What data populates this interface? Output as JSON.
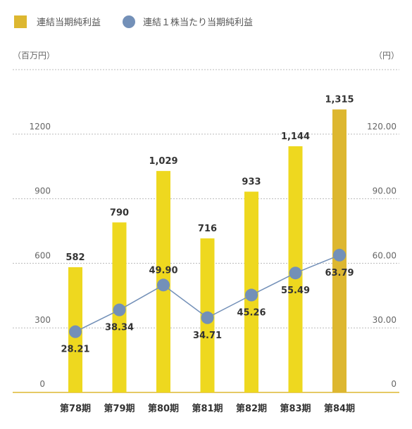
{
  "chart_data": {
    "type": "bar+line",
    "categories": [
      "第78期",
      "第79期",
      "第80期",
      "第81期",
      "第82期",
      "第83期",
      "第84期"
    ],
    "series": [
      {
        "name": "連結当期純利益",
        "type": "bar",
        "axis": "left",
        "values": [
          582,
          790,
          1029,
          716,
          933,
          1144,
          1315
        ],
        "labels": [
          "582",
          "790",
          "1,029",
          "716",
          "933",
          "1,144",
          "1,315"
        ],
        "color": "#EED81F",
        "highlight_color": "#DDB730",
        "highlight_index": 6
      },
      {
        "name": "連結１株当たり当期純利益",
        "type": "line",
        "axis": "right",
        "values": [
          28.21,
          38.34,
          49.9,
          34.71,
          45.26,
          55.49,
          63.79
        ],
        "labels": [
          "28.21",
          "38.34",
          "49.90",
          "34.71",
          "45.26",
          "55.49",
          "63.79"
        ],
        "color": "#7390B8"
      }
    ],
    "y_left": {
      "unit": "（百万円）",
      "ticks": [
        0,
        300,
        600,
        900,
        1200
      ],
      "tick_labels": [
        "0",
        "300",
        "600",
        "900",
        "1200"
      ],
      "range": [
        0,
        1500
      ]
    },
    "y_right": {
      "unit": "（円）",
      "ticks": [
        0,
        30,
        60,
        90,
        120
      ],
      "tick_labels": [
        "0",
        "30.00",
        "60.00",
        "90.00",
        "120.00"
      ],
      "range": [
        0,
        150
      ]
    },
    "grid": true,
    "legend": "top-left"
  }
}
